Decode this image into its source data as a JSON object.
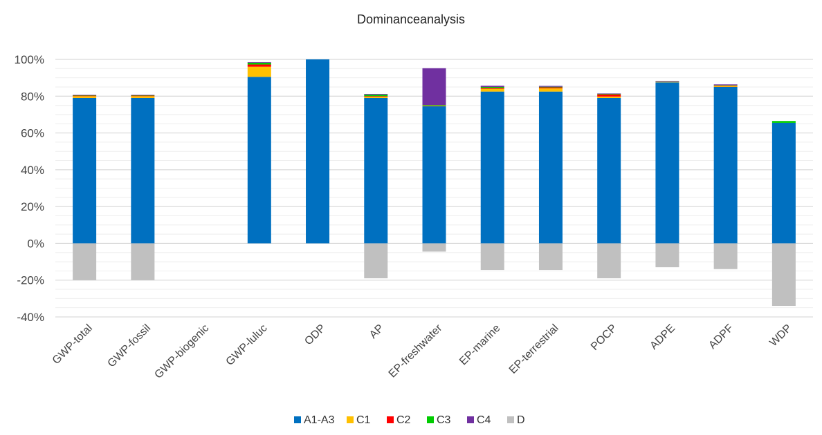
{
  "chart_data": {
    "type": "bar",
    "stacked": true,
    "title": "Dominanceanalysis",
    "categories": [
      "GWP-total",
      "GWP-fossil",
      "GWP-biogenic",
      "GWP-luluc",
      "ODP",
      "AP",
      "EP-freshwater",
      "EP-marine",
      "EP-terrestrial",
      "POCP",
      "ADPE",
      "ADPF",
      "WDP"
    ],
    "series": [
      {
        "name": "A1-A3",
        "color": "#0070C0",
        "values": [
          79,
          79,
          0,
          90.5,
          100,
          79,
          74.5,
          82.5,
          82.5,
          79,
          87.5,
          85,
          65.5
        ]
      },
      {
        "name": "C1",
        "color": "#FFC000",
        "values": [
          1,
          1,
          0,
          5.5,
          0,
          0.7,
          0.3,
          1.5,
          1.8,
          0.8,
          0.2,
          0.5,
          0
        ]
      },
      {
        "name": "C2",
        "color": "#FF0000",
        "values": [
          0.3,
          0.3,
          0,
          1.2,
          0,
          0.3,
          0.1,
          0.5,
          0.5,
          1.2,
          0.1,
          0.3,
          0
        ]
      },
      {
        "name": "C3",
        "color": "#00CC00",
        "values": [
          0.2,
          0.2,
          0,
          1.0,
          0,
          0.8,
          0.3,
          0.5,
          0.3,
          0.3,
          0.1,
          0.2,
          1.0
        ]
      },
      {
        "name": "C4",
        "color": "#7030A0",
        "values": [
          0.2,
          0.2,
          0,
          0.3,
          0,
          0.4,
          20,
          0.7,
          0.5,
          0.2,
          0.3,
          0.4,
          0
        ]
      },
      {
        "name": "D",
        "color": "#C0C0C0",
        "values": [
          -20,
          -20,
          0,
          0,
          0,
          -19,
          -4.5,
          -14.5,
          -14.5,
          -19,
          -13,
          -14,
          -34
        ]
      }
    ],
    "yticks": [
      "-40%",
      "-20%",
      "0%",
      "20%",
      "40%",
      "60%",
      "80%",
      "100%"
    ],
    "ylim": [
      -40,
      100
    ],
    "legend_position": "bottom",
    "grid": true
  }
}
